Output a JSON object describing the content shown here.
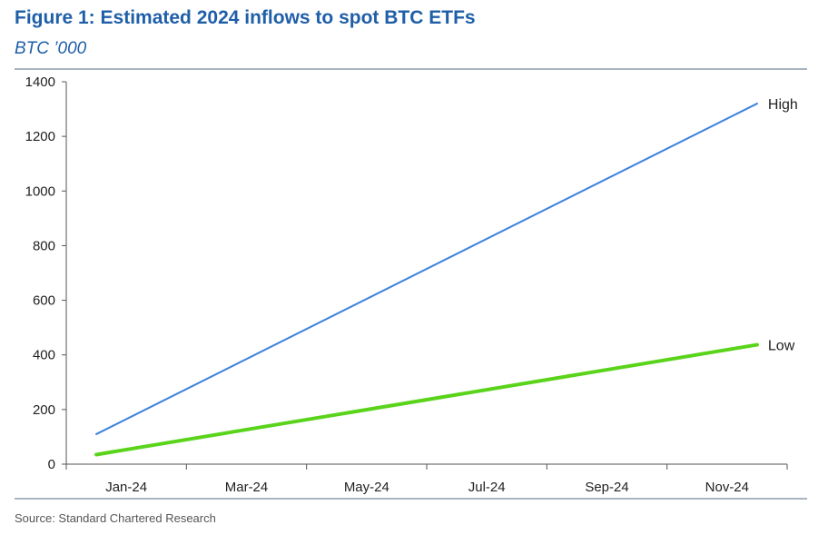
{
  "header": {
    "title": "Figure 1: Estimated 2024 inflows to spot BTC ETFs",
    "subtitle": "BTC ’000"
  },
  "footer": {
    "source": "Source: Standard Chartered Research"
  },
  "colors": {
    "title": "#1f5fa8",
    "high_line": "#3b82e0",
    "low_line": "#5ad41b",
    "axis": "#555555",
    "rule": "#a9b4c1"
  },
  "chart_data": {
    "type": "line",
    "title": "Figure 1: Estimated 2024 inflows to spot BTC ETFs",
    "ylabel": "BTC ’000",
    "xlabel": "",
    "x_tick_labels": [
      "Jan-24",
      "Mar-24",
      "May-24",
      "Jul-24",
      "Sep-24",
      "Nov-24"
    ],
    "x_tick_positions": [
      0,
      2,
      4,
      6,
      8,
      10
    ],
    "x_range": [
      0,
      12
    ],
    "ylim": [
      0,
      1400
    ],
    "y_ticks": [
      0,
      200,
      400,
      600,
      800,
      1000,
      1200,
      1400
    ],
    "grid": false,
    "legend": "inline labels at line ends",
    "series": [
      {
        "name": "High",
        "x": [
          0.5,
          11.5
        ],
        "values": [
          110,
          1320
        ]
      },
      {
        "name": "Low",
        "x": [
          0.5,
          11.5
        ],
        "values": [
          35,
          437
        ]
      }
    ]
  }
}
